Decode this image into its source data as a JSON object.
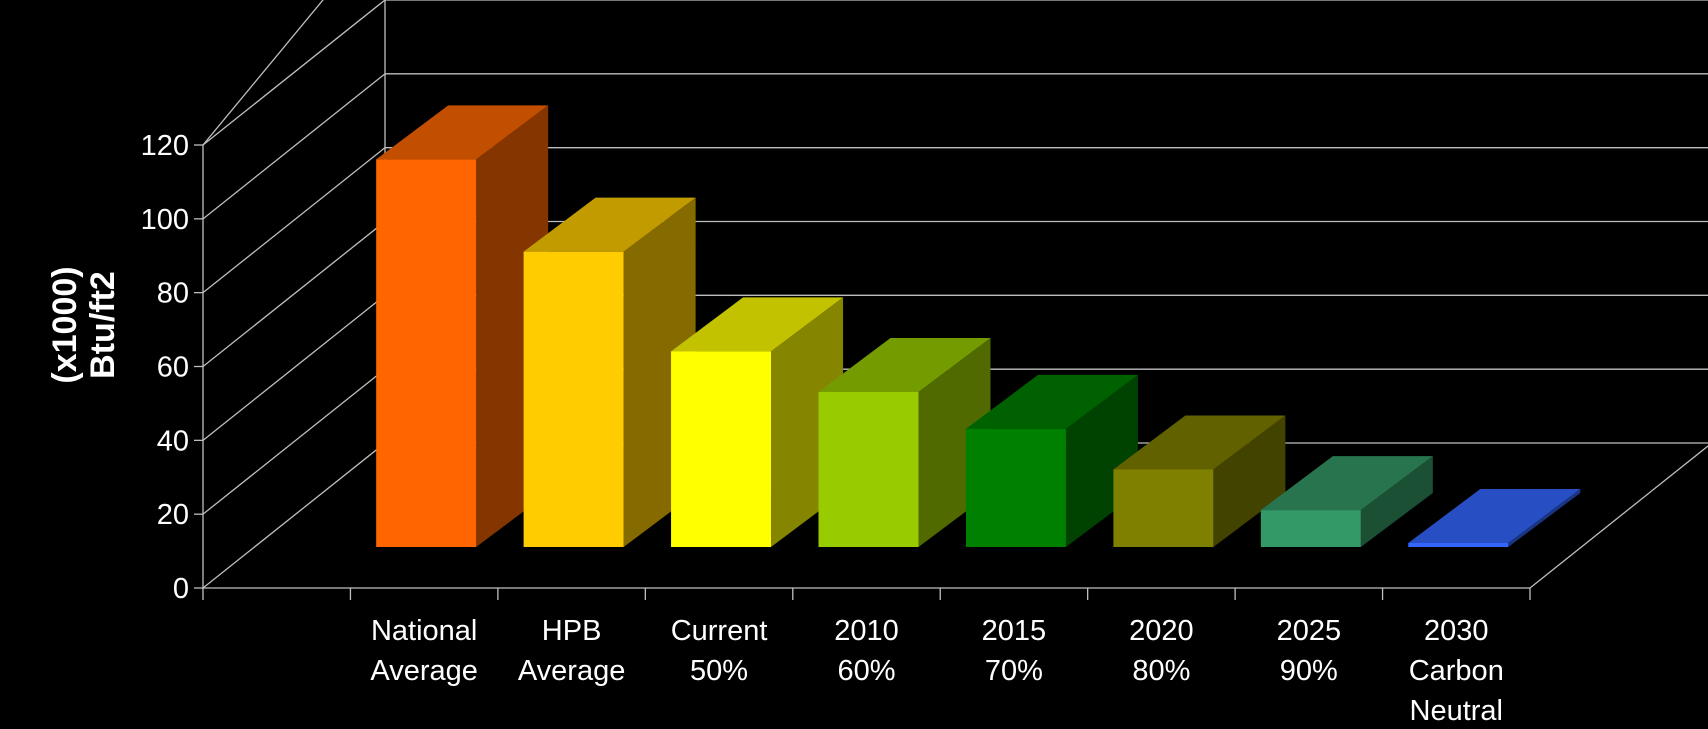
{
  "chart_data": {
    "type": "bar",
    "title": "",
    "ylabel_lines": [
      "(x1000)",
      "Btu/ft2"
    ],
    "xlabel": "",
    "ylim": [
      0,
      120
    ],
    "yticks": [
      0,
      20,
      40,
      60,
      80,
      100,
      120
    ],
    "grid": true,
    "categories": [
      [
        "National",
        "Average"
      ],
      [
        "HPB",
        "Average"
      ],
      [
        "Current",
        "50%"
      ],
      [
        "2010",
        "60%"
      ],
      [
        "2015",
        "70%"
      ],
      [
        "2020",
        "80%"
      ],
      [
        "2025",
        "90%"
      ],
      [
        "2030",
        "Carbon",
        "Neutral"
      ]
    ],
    "values": [
      105,
      80,
      53,
      42,
      32,
      21,
      10,
      0.5
    ],
    "colors": [
      "#FF6600",
      "#FFCC00",
      "#FFFF00",
      "#99CC00",
      "#008000",
      "#808000",
      "#339966",
      "#3366FF"
    ]
  }
}
